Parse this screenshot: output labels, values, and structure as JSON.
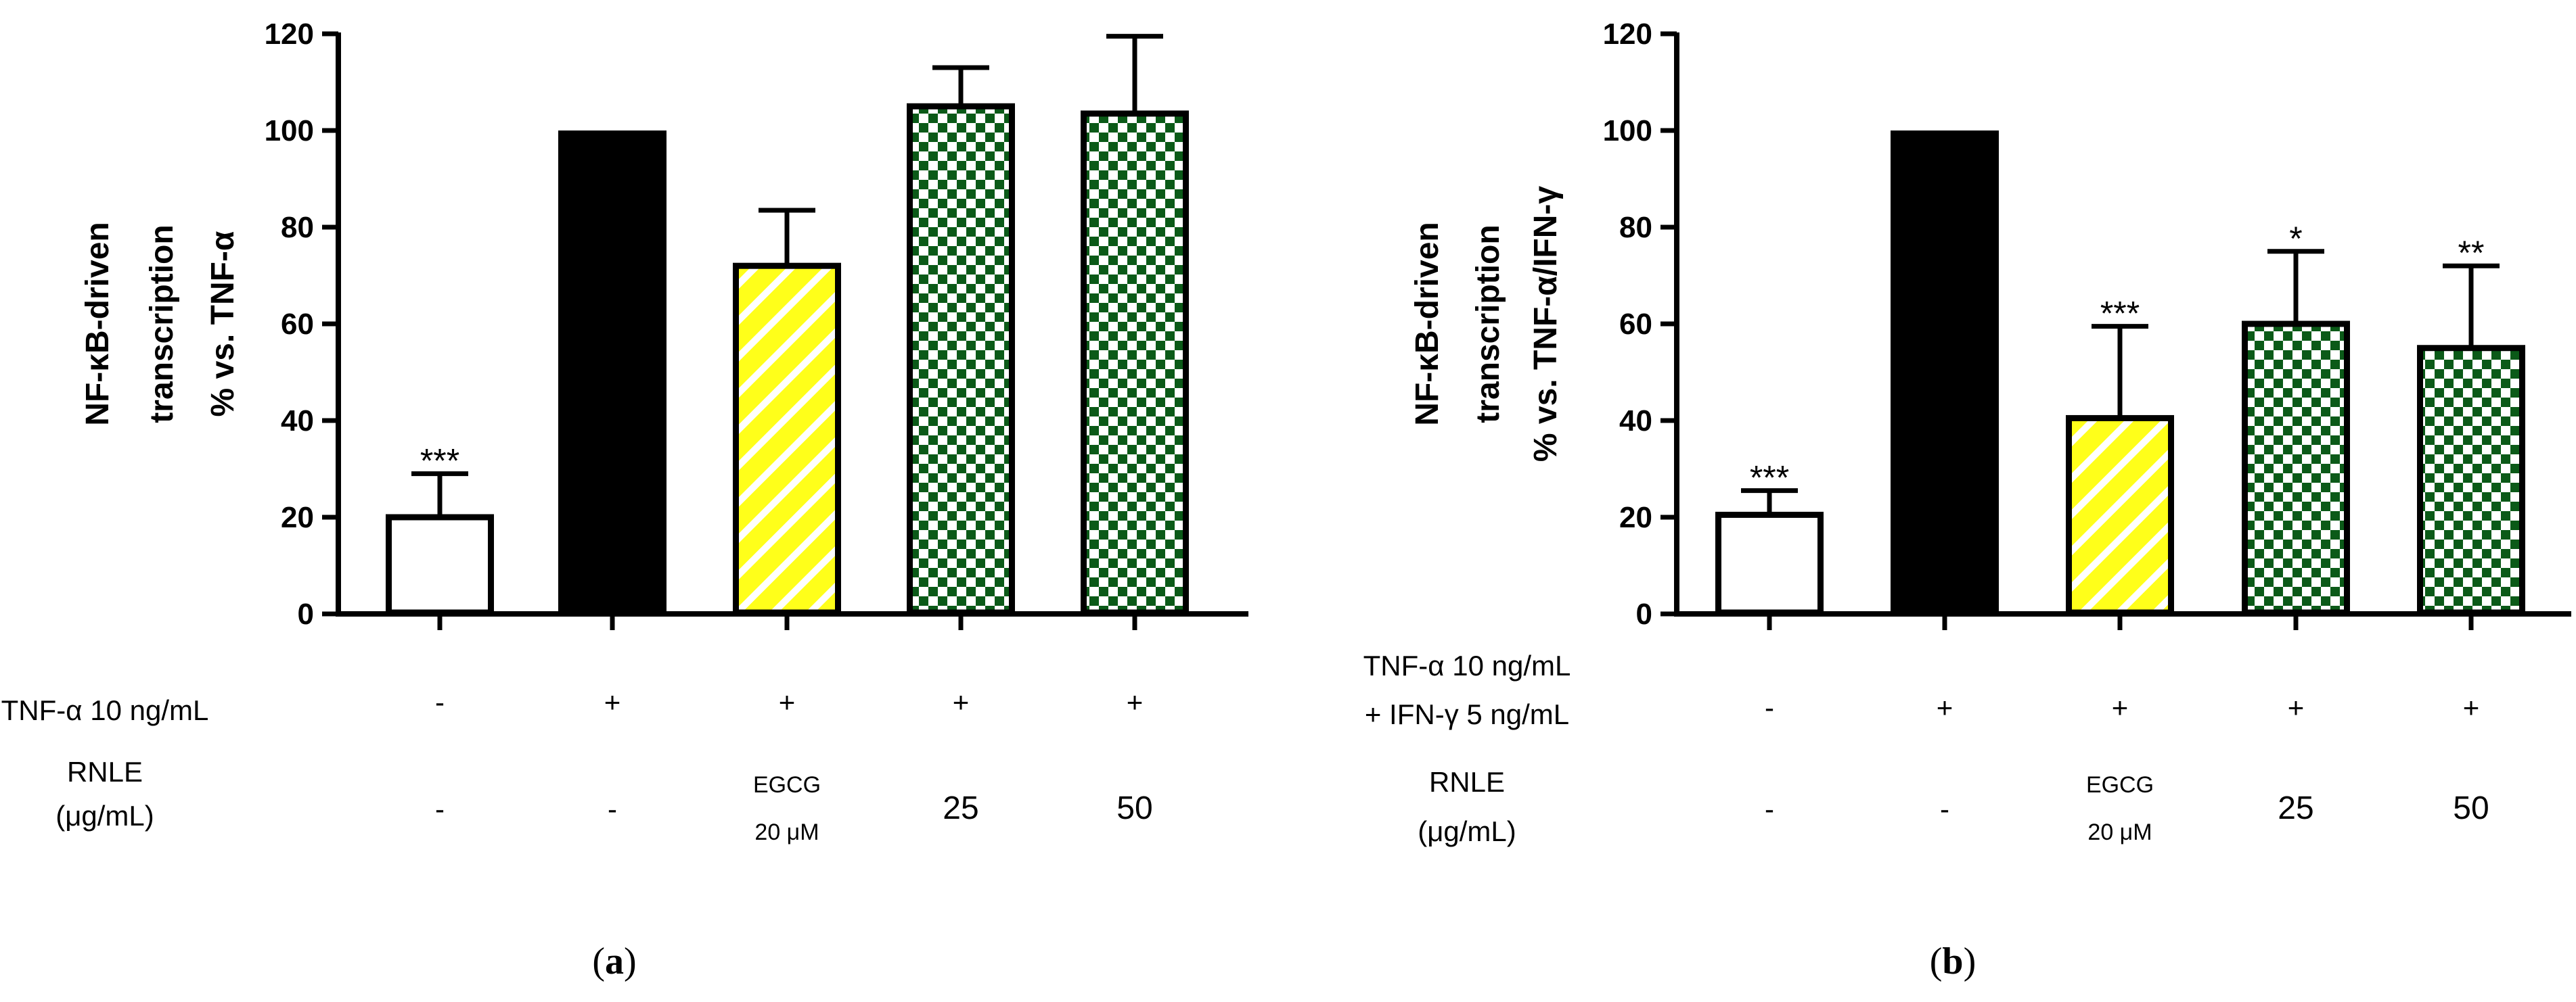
{
  "chart_data": [
    {
      "type": "bar",
      "panel": "a",
      "ylabel_lines": [
        "NF-κB-driven",
        "transcription",
        "% vs. TNF-α"
      ],
      "ylim": [
        0,
        120
      ],
      "yticks": [
        0,
        20,
        40,
        60,
        80,
        100,
        120
      ],
      "values": [
        20,
        100,
        72,
        105,
        103.5
      ],
      "errors": [
        9,
        0,
        11.5,
        8,
        16
      ],
      "significance": [
        "***",
        "",
        "",
        "",
        ""
      ],
      "fills": [
        "white",
        "solid-black",
        "yellow-diagonal-stripes",
        "green-checker",
        "green-checker"
      ],
      "rows": [
        {
          "label_lines": [
            "TNF-α 10 ng/mL"
          ],
          "cells": [
            [
              "-"
            ],
            [
              "+"
            ],
            [
              "+"
            ],
            [
              "+"
            ],
            [
              "+"
            ]
          ]
        },
        {
          "label_lines": [
            "RNLE",
            "(μg/mL)"
          ],
          "cells": [
            [
              "-"
            ],
            [
              "-"
            ],
            [
              "EGCG",
              "20 μM"
            ],
            [
              "25"
            ],
            [
              "50"
            ]
          ]
        }
      ]
    },
    {
      "type": "bar",
      "panel": "b",
      "ylabel_lines": [
        "NF-κB-driven",
        "transcription",
        "% vs. TNF-α/IFN-γ"
      ],
      "ylim": [
        0,
        120
      ],
      "yticks": [
        0,
        20,
        40,
        60,
        80,
        100,
        120
      ],
      "values": [
        20.5,
        100,
        40.5,
        60,
        55
      ],
      "errors": [
        5,
        0,
        19,
        15,
        17
      ],
      "significance": [
        "***",
        "",
        "***",
        "*",
        "**"
      ],
      "fills": [
        "white",
        "solid-black",
        "yellow-diagonal-stripes",
        "green-checker",
        "green-checker"
      ],
      "rows": [
        {
          "label_lines": [
            "TNF-α 10 ng/mL",
            "+ IFN-γ 5 ng/mL"
          ],
          "cells": [
            [
              "-"
            ],
            [
              "+"
            ],
            [
              "+"
            ],
            [
              "+"
            ],
            [
              "+"
            ]
          ]
        },
        {
          "label_lines": [
            "RNLE",
            "(μg/mL)"
          ],
          "cells": [
            [
              "-"
            ],
            [
              "-"
            ],
            [
              "EGCG",
              "20 μM"
            ],
            [
              "25"
            ],
            [
              "50"
            ]
          ]
        }
      ]
    }
  ],
  "captions": {
    "a": "a",
    "b": "b"
  },
  "colors": {
    "yellow": "#ffff1a",
    "green": "#0b5a18",
    "black": "#000000",
    "white": "#ffffff"
  }
}
